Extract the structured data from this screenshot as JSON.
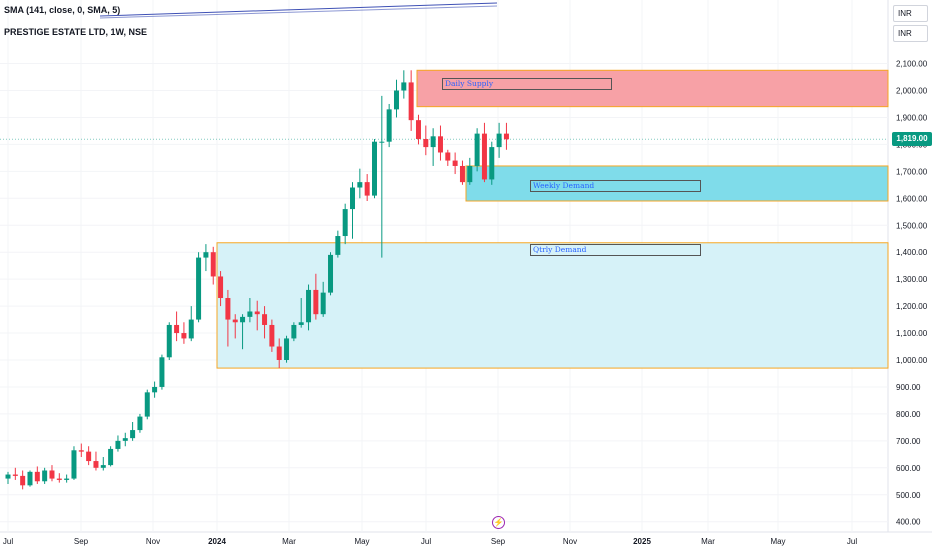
{
  "header": {
    "indicator": "SMA (141, close, 0, SMA, 5)",
    "symbol": "PRESTIGE ESTATE LTD, 1W, NSE"
  },
  "currency": [
    "INR",
    "INR"
  ],
  "last_price_label": "1,819.00",
  "zones": {
    "daily_supply": "Daily Supply",
    "weekly_demand": "Weekly Demand",
    "qtrly_demand": "Qtrly Demand"
  },
  "colors": {
    "up": "#089981",
    "down": "#f23645",
    "supply": "#f7a1a6",
    "weekly_demand": "#7fdcea",
    "qtrly_demand": "#d6f2f8",
    "zone_border": "#f5a623",
    "sma": "#3f51b5"
  },
  "chart_data": {
    "type": "candlestick",
    "title": "PRESTIGE ESTATE LTD, 1W, NSE",
    "y_ticks": [
      400,
      500,
      600,
      700,
      800,
      900,
      1000,
      1100,
      1200,
      1300,
      1400,
      1500,
      1600,
      1700,
      1800,
      1900,
      2000,
      2100
    ],
    "y_tick_labels": [
      "400.00",
      "500.00",
      "600.00",
      "700.00",
      "800.00",
      "900.00",
      "1,000.00",
      "1,100.00",
      "1,200.00",
      "1,300.00",
      "1,400.00",
      "1,500.00",
      "1,600.00",
      "1,700.00",
      "1,800.00",
      "1,900.00",
      "2,000.00",
      "2,100.00"
    ],
    "x_ticks": [
      "Jul",
      "Sep",
      "Nov",
      "2024",
      "Mar",
      "May",
      "Jul",
      "Sep",
      "Nov",
      "2025",
      "Mar",
      "May",
      "Jul"
    ],
    "zones": [
      {
        "name": "Daily Supply",
        "from": 1940,
        "to": 2075
      },
      {
        "name": "Weekly Demand",
        "from": 1590,
        "to": 1720
      },
      {
        "name": "Qtrly Demand",
        "from": 970,
        "to": 1435
      }
    ],
    "last_price": 1819,
    "candles": [
      {
        "o": 560,
        "h": 585,
        "l": 540,
        "c": 575
      },
      {
        "o": 575,
        "h": 600,
        "l": 555,
        "c": 570
      },
      {
        "o": 570,
        "h": 590,
        "l": 520,
        "c": 535
      },
      {
        "o": 535,
        "h": 590,
        "l": 530,
        "c": 585
      },
      {
        "o": 585,
        "h": 605,
        "l": 540,
        "c": 550
      },
      {
        "o": 550,
        "h": 600,
        "l": 540,
        "c": 590
      },
      {
        "o": 590,
        "h": 610,
        "l": 550,
        "c": 560
      },
      {
        "o": 560,
        "h": 580,
        "l": 545,
        "c": 555
      },
      {
        "o": 555,
        "h": 575,
        "l": 545,
        "c": 560
      },
      {
        "o": 560,
        "h": 680,
        "l": 555,
        "c": 665
      },
      {
        "o": 665,
        "h": 690,
        "l": 640,
        "c": 660
      },
      {
        "o": 660,
        "h": 680,
        "l": 610,
        "c": 625
      },
      {
        "o": 625,
        "h": 660,
        "l": 590,
        "c": 600
      },
      {
        "o": 600,
        "h": 640,
        "l": 590,
        "c": 610
      },
      {
        "o": 610,
        "h": 680,
        "l": 605,
        "c": 670
      },
      {
        "o": 670,
        "h": 720,
        "l": 660,
        "c": 700
      },
      {
        "o": 700,
        "h": 730,
        "l": 680,
        "c": 710
      },
      {
        "o": 710,
        "h": 770,
        "l": 700,
        "c": 740
      },
      {
        "o": 740,
        "h": 800,
        "l": 730,
        "c": 790
      },
      {
        "o": 790,
        "h": 890,
        "l": 780,
        "c": 880
      },
      {
        "o": 880,
        "h": 920,
        "l": 860,
        "c": 900
      },
      {
        "o": 900,
        "h": 1020,
        "l": 890,
        "c": 1010
      },
      {
        "o": 1010,
        "h": 1140,
        "l": 1000,
        "c": 1130
      },
      {
        "o": 1130,
        "h": 1180,
        "l": 1070,
        "c": 1100
      },
      {
        "o": 1100,
        "h": 1140,
        "l": 1060,
        "c": 1080
      },
      {
        "o": 1080,
        "h": 1200,
        "l": 1070,
        "c": 1150
      },
      {
        "o": 1150,
        "h": 1400,
        "l": 1140,
        "c": 1380
      },
      {
        "o": 1380,
        "h": 1430,
        "l": 1330,
        "c": 1400
      },
      {
        "o": 1400,
        "h": 1420,
        "l": 1280,
        "c": 1310
      },
      {
        "o": 1310,
        "h": 1330,
        "l": 1200,
        "c": 1230
      },
      {
        "o": 1230,
        "h": 1260,
        "l": 1050,
        "c": 1150
      },
      {
        "o": 1150,
        "h": 1170,
        "l": 1080,
        "c": 1140
      },
      {
        "o": 1140,
        "h": 1170,
        "l": 1040,
        "c": 1160
      },
      {
        "o": 1160,
        "h": 1230,
        "l": 1140,
        "c": 1180
      },
      {
        "o": 1180,
        "h": 1220,
        "l": 1110,
        "c": 1170
      },
      {
        "o": 1170,
        "h": 1200,
        "l": 1080,
        "c": 1130
      },
      {
        "o": 1130,
        "h": 1150,
        "l": 1030,
        "c": 1050
      },
      {
        "o": 1050,
        "h": 1080,
        "l": 970,
        "c": 1000
      },
      {
        "o": 1000,
        "h": 1090,
        "l": 990,
        "c": 1080
      },
      {
        "o": 1080,
        "h": 1140,
        "l": 1070,
        "c": 1130
      },
      {
        "o": 1130,
        "h": 1230,
        "l": 1120,
        "c": 1140
      },
      {
        "o": 1140,
        "h": 1280,
        "l": 1110,
        "c": 1260
      },
      {
        "o": 1260,
        "h": 1320,
        "l": 1150,
        "c": 1170
      },
      {
        "o": 1170,
        "h": 1290,
        "l": 1160,
        "c": 1250
      },
      {
        "o": 1250,
        "h": 1400,
        "l": 1240,
        "c": 1390
      },
      {
        "o": 1390,
        "h": 1480,
        "l": 1380,
        "c": 1460
      },
      {
        "o": 1460,
        "h": 1580,
        "l": 1430,
        "c": 1560
      },
      {
        "o": 1560,
        "h": 1660,
        "l": 1450,
        "c": 1640
      },
      {
        "o": 1640,
        "h": 1710,
        "l": 1600,
        "c": 1660
      },
      {
        "o": 1660,
        "h": 1690,
        "l": 1590,
        "c": 1610
      },
      {
        "o": 1610,
        "h": 1820,
        "l": 1600,
        "c": 1810
      },
      {
        "o": 1810,
        "h": 1980,
        "l": 1380,
        "c": 1810
      },
      {
        "o": 1810,
        "h": 1950,
        "l": 1790,
        "c": 1930
      },
      {
        "o": 1930,
        "h": 2040,
        "l": 1900,
        "c": 2000
      },
      {
        "o": 2000,
        "h": 2075,
        "l": 1970,
        "c": 2030
      },
      {
        "o": 2030,
        "h": 2075,
        "l": 1850,
        "c": 1890
      },
      {
        "o": 1890,
        "h": 1910,
        "l": 1800,
        "c": 1820
      },
      {
        "o": 1820,
        "h": 1870,
        "l": 1760,
        "c": 1790
      },
      {
        "o": 1790,
        "h": 1860,
        "l": 1720,
        "c": 1830
      },
      {
        "o": 1830,
        "h": 1870,
        "l": 1740,
        "c": 1770
      },
      {
        "o": 1770,
        "h": 1780,
        "l": 1720,
        "c": 1740
      },
      {
        "o": 1740,
        "h": 1770,
        "l": 1690,
        "c": 1720
      },
      {
        "o": 1720,
        "h": 1740,
        "l": 1650,
        "c": 1660
      },
      {
        "o": 1660,
        "h": 1750,
        "l": 1650,
        "c": 1720
      },
      {
        "o": 1720,
        "h": 1860,
        "l": 1700,
        "c": 1840
      },
      {
        "o": 1840,
        "h": 1880,
        "l": 1660,
        "c": 1670
      },
      {
        "o": 1670,
        "h": 1810,
        "l": 1650,
        "c": 1790
      },
      {
        "o": 1790,
        "h": 1880,
        "l": 1750,
        "c": 1840
      },
      {
        "o": 1840,
        "h": 1880,
        "l": 1780,
        "c": 1819
      }
    ]
  }
}
